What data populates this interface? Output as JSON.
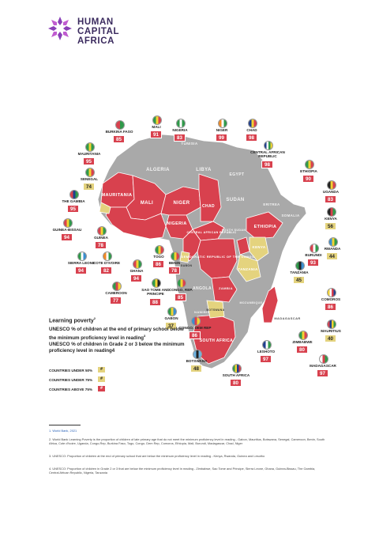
{
  "brand": {
    "line1": "HUMAN",
    "line2": "CAPITAL",
    "line3": "AFRICA"
  },
  "legend": {
    "title": "Learning poverty",
    "title_sup": "2",
    "q1": "UNESCO % of children at the end of primary school below the minimum proficiency level in reading",
    "q1_sup": "3",
    "q2": "UNESCO % of children in Grade 2 or 3 below the minimum proficiency level in reading4",
    "keys": [
      {
        "label": "COUNTRIES UNDER 50%",
        "swatch": "#",
        "color": "#e4d37e"
      },
      {
        "label": "COUNTRIES UNDER 75%",
        "swatch": "#",
        "color": "#e4d37e"
      },
      {
        "label": "COUNTRIES ABOVE 75%",
        "swatch": "#",
        "color": "#d8414e"
      }
    ]
  },
  "map_names": {
    "algeria": "ALGERIA",
    "libya": "LIBYA",
    "egypt": "EGYPT",
    "tunisia": "TUNISIA",
    "mali": "MALI",
    "niger": "NIGER",
    "chad": "CHAD",
    "sudan": "SUDAN",
    "mauritania": "MAURITANIA",
    "nigeria": "NIGERIA",
    "eritrea": "ERITREA",
    "somalia": "SOMALIA",
    "ethiopia": "ETHIOPIA",
    "kenya": "KENYA",
    "tanzania": "TANZANIA",
    "car": "CENTRAL AFRICAN REPUBLIC",
    "south_sudan": "SOUTH SUDAN",
    "drc": "DEMOCRATIC REPUBLIC OF THE CONGO",
    "angola": "ANGOLA",
    "zambia": "ZAMBIA",
    "namibia": "NAMIBIA",
    "botswana": "BOTSWANA",
    "south_africa": "SOUTH AFRICA",
    "madagascar": "MADAGASCAR",
    "mozambique": "MOZAMBIQUE",
    "gabon": "GABON"
  },
  "countries": [
    {
      "name": "BURKINA FASO",
      "value": "85",
      "level": "red",
      "flag": [
        "#d8414e",
        "#2f9a4a"
      ]
    },
    {
      "name": "MALI",
      "value": "91",
      "level": "red",
      "flag": [
        "#2f9a4a",
        "#f2d233",
        "#d8414e"
      ]
    },
    {
      "name": "NIGERIA",
      "value": "83",
      "level": "red",
      "flag": [
        "#2f9a4a",
        "#ffffff",
        "#2f9a4a"
      ]
    },
    {
      "name": "NIGER",
      "value": "99",
      "level": "red",
      "flag": [
        "#f08a24",
        "#ffffff",
        "#2f9a4a"
      ]
    },
    {
      "name": "CHAD",
      "value": "98",
      "level": "red",
      "flag": [
        "#1f3f8f",
        "#f2d233",
        "#d8414e"
      ]
    },
    {
      "name": "MAURITANIA",
      "value": "95",
      "level": "red",
      "flag": [
        "#2f9a4a",
        "#f2d233",
        "#2f9a4a"
      ]
    },
    {
      "name": "CENTRAL AFRICAN REPUBLIC",
      "value": "98",
      "level": "red",
      "flag": [
        "#1f3f8f",
        "#ffffff",
        "#2f9a4a",
        "#f2d233"
      ]
    },
    {
      "name": "SENEGAL",
      "value": "74",
      "level": "yel",
      "flag": [
        "#2f9a4a",
        "#f2d233",
        "#d8414e"
      ]
    },
    {
      "name": "ETHIOPIA",
      "value": "90",
      "level": "red",
      "flag": [
        "#2f9a4a",
        "#f2d233",
        "#d8414e"
      ]
    },
    {
      "name": "THE GAMBIA",
      "value": "95",
      "level": "red",
      "flag": [
        "#d8414e",
        "#1f3f8f",
        "#2f9a4a"
      ]
    },
    {
      "name": "UGANDA",
      "value": "83",
      "level": "red",
      "flag": [
        "#222222",
        "#f2d233",
        "#d8414e"
      ]
    },
    {
      "name": "GUINEA-BISSAU",
      "value": "94",
      "level": "red",
      "flag": [
        "#d8414e",
        "#f2d233",
        "#2f9a4a"
      ]
    },
    {
      "name": "KENYA",
      "value": "56",
      "level": "yel",
      "flag": [
        "#222222",
        "#d8414e",
        "#2f9a4a"
      ]
    },
    {
      "name": "GUINEA",
      "value": "78",
      "level": "red",
      "flag": [
        "#d8414e",
        "#f2d233",
        "#2f9a4a"
      ]
    },
    {
      "name": "RWANDA",
      "value": "44",
      "level": "yel",
      "flag": [
        "#3a8fd0",
        "#f2d233",
        "#2f9a4a"
      ]
    },
    {
      "name": "BURUNDI",
      "value": "93",
      "level": "red",
      "flag": [
        "#d8414e",
        "#ffffff",
        "#2f9a4a"
      ]
    },
    {
      "name": "SIERRA LEONE",
      "value": "94",
      "level": "red",
      "flag": [
        "#2f9a4a",
        "#ffffff",
        "#3a8fd0"
      ]
    },
    {
      "name": "COTE D'IVOIRE",
      "value": "82",
      "level": "red",
      "flag": [
        "#f08a24",
        "#ffffff",
        "#2f9a4a"
      ]
    },
    {
      "name": "TOGO",
      "value": "86",
      "level": "red",
      "flag": [
        "#2f9a4a",
        "#f2d233",
        "#d8414e"
      ]
    },
    {
      "name": "BENIN",
      "value": "78",
      "level": "red",
      "flag": [
        "#2f9a4a",
        "#f2d233",
        "#d8414e"
      ]
    },
    {
      "name": "TANZANIA",
      "value": "45",
      "level": "yel",
      "flag": [
        "#2f9a4a",
        "#222222",
        "#3a8fd0"
      ]
    },
    {
      "name": "GHANA",
      "value": "94",
      "level": "red",
      "flag": [
        "#d8414e",
        "#f2d233",
        "#2f9a4a"
      ]
    },
    {
      "name": "CAMEROON",
      "value": "77",
      "level": "red",
      "flag": [
        "#2f9a4a",
        "#d8414e",
        "#f2d233"
      ]
    },
    {
      "name": "SAO TOME AND PRINCIPE",
      "value": "88",
      "level": "red",
      "flag": [
        "#2f9a4a",
        "#f2d233",
        "#222222"
      ]
    },
    {
      "name": "CONGO, REP.",
      "value": "85",
      "level": "red",
      "flag": [
        "#2f9a4a",
        "#f2d233",
        "#d8414e"
      ]
    },
    {
      "name": "COMOROS",
      "value": "86",
      "level": "red",
      "flag": [
        "#f2d233",
        "#ffffff",
        "#d8414e",
        "#1f3f8f"
      ]
    },
    {
      "name": "GABON",
      "value": "37",
      "level": "yel",
      "flag": [
        "#2f9a4a",
        "#f2d233",
        "#3a8fd0"
      ]
    },
    {
      "name": "CONGO, DEM REP",
      "value": "86",
      "level": "red",
      "flag": [
        "#3a8fd0",
        "#d8414e",
        "#f2d233"
      ]
    },
    {
      "name": "MAURITIUS",
      "value": "40",
      "level": "yel",
      "flag": [
        "#d8414e",
        "#1f3f8f",
        "#f2d233",
        "#2f9a4a"
      ]
    },
    {
      "name": "ZIMBABWE",
      "value": "80",
      "level": "red",
      "flag": [
        "#2f9a4a",
        "#f2d233",
        "#d8414e"
      ]
    },
    {
      "name": "BOTSWANA",
      "value": "48",
      "level": "yel",
      "flag": [
        "#6fb3e0",
        "#222222",
        "#6fb3e0"
      ]
    },
    {
      "name": "LESHOTO",
      "value": "97",
      "level": "red",
      "flag": [
        "#1f3f8f",
        "#ffffff",
        "#2f9a4a"
      ]
    },
    {
      "name": "MADAGASCAR",
      "value": "97",
      "level": "red",
      "flag": [
        "#ffffff",
        "#d8414e",
        "#2f9a4a"
      ]
    },
    {
      "name": "SOUTH AFRICA",
      "value": "80",
      "level": "red",
      "flag": [
        "#2f9a4a",
        "#f2d233",
        "#1f3f8f",
        "#d8414e"
      ]
    }
  ],
  "footnotes": [
    "1. World Bank, 2021",
    "2. World Bank Learning Poverty is the proportion of children of late primary age that do not meet the minimum proficiency level in reading - Gabon, Mauritius, Botswana, Senegal, Cameroon, Benin, South Africa, Cote d'Ivoire, Uganda, Congo-Rep, Burkina Faso, Togo, Congo- Dem Rep, Comoros, Ethiopia, Mali, Burundi, Madagascar, Chad, Niger",
    "3. UNESCO: Proportion of children at the end of primary school that are below the minimum proficiency level in reading - Kenya, Rwanda, Guinea and Lesotho",
    "4. UNESCO: Proportion of children in Grade 2 or 3 that are below the minimum proficiency level in reading - Zimbabwe, Sao Tome and Principe, Sierra Leone, Ghana, Guinea-Bissau, The Gambia, Central African Republic, Nigeria, Tanzania"
  ]
}
